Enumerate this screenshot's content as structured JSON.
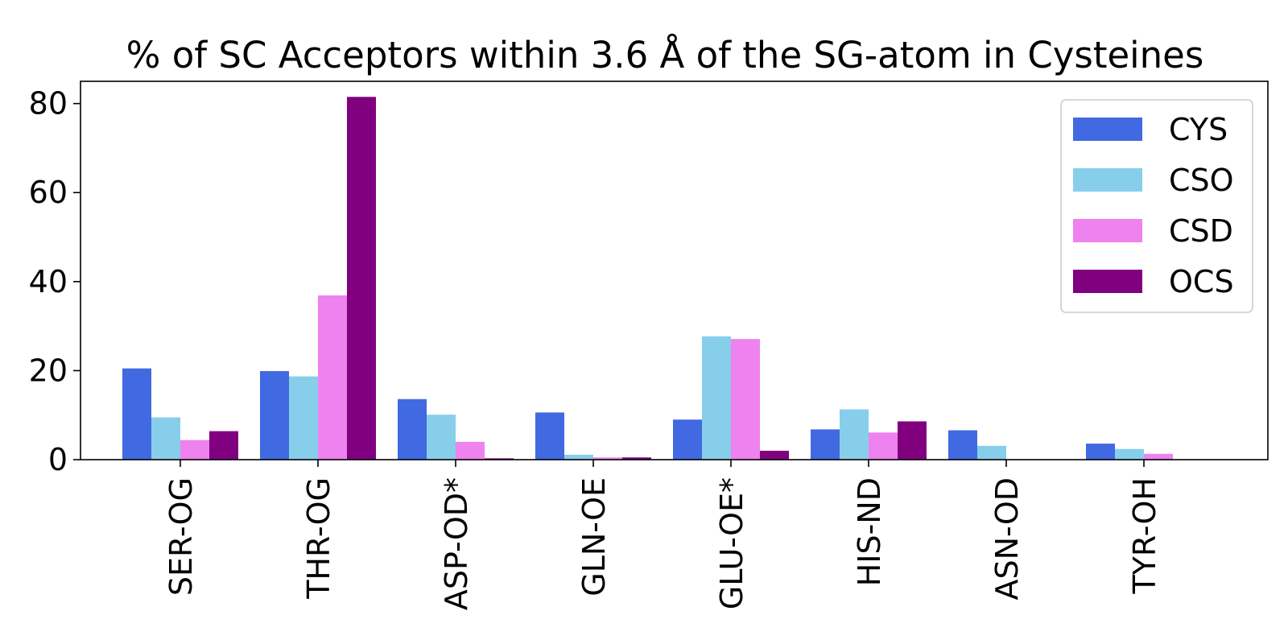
{
  "chart_data": {
    "type": "bar",
    "title": "% of SC Acceptors within 3.6 Å of the SG-atom in Cysteines",
    "xlabel": "",
    "ylabel": "",
    "ylim": [
      0,
      85
    ],
    "yticks": [
      0,
      20,
      40,
      60,
      80
    ],
    "grid": false,
    "legend_position": "top-right",
    "categories": [
      "SER-OG",
      "THR-OG",
      "ASP-OD*",
      "GLN-OE",
      "GLU-OE*",
      "HIS-ND",
      "ASN-OD",
      "TYR-OH"
    ],
    "series": [
      {
        "name": "CYS",
        "color": "#4169e1",
        "values": [
          20.5,
          19.9,
          13.6,
          10.6,
          9.0,
          6.8,
          6.6,
          3.6
        ]
      },
      {
        "name": "CSO",
        "color": "#87ceeb",
        "values": [
          9.5,
          18.7,
          10.1,
          1.1,
          27.7,
          11.3,
          3.1,
          2.4
        ]
      },
      {
        "name": "CSD",
        "color": "#ee82ee",
        "values": [
          4.4,
          36.9,
          4.0,
          0.5,
          27.1,
          6.1,
          0.0,
          1.3
        ]
      },
      {
        "name": "OCS",
        "color": "#800080",
        "values": [
          6.4,
          81.5,
          0.3,
          0.5,
          2.0,
          8.6,
          0.0,
          0.0
        ]
      }
    ]
  }
}
